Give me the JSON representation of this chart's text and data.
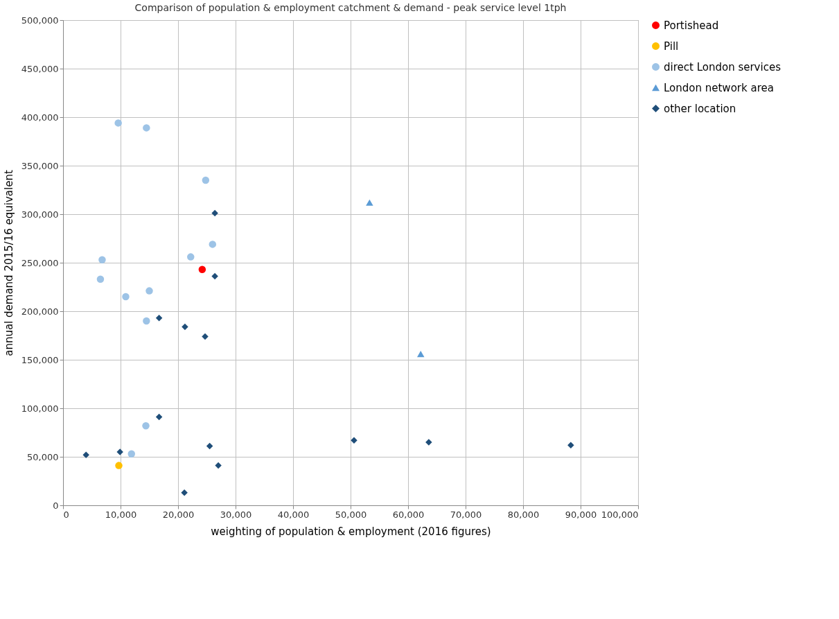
{
  "chart_data": {
    "type": "scatter",
    "title": "Comparison of population & employment catchment & demand - peak service level 1tph",
    "xlabel": "weighting of population & employment (2016 figures)",
    "ylabel": "annual demand 2015/16 equivalent",
    "xlim": [
      0,
      100000
    ],
    "xticks": [
      0,
      {
        "value": 10000,
        "label": "10,000"
      },
      {
        "value": 20000,
        "label": "20,000"
      },
      {
        "value": 30000,
        "label": "30,000"
      },
      {
        "value": 40000,
        "label": "40,000"
      },
      {
        "value": 50000,
        "label": "50,000"
      },
      {
        "value": 60000,
        "label": "60,000"
      },
      {
        "value": 70000,
        "label": "70,000"
      },
      {
        "value": 80000,
        "label": "80,000"
      },
      {
        "value": 90000,
        "label": "90,000"
      },
      {
        "value": 100000,
        "label": "100,000"
      }
    ],
    "ylim": [
      0,
      500000
    ],
    "yticks": [
      0,
      {
        "value": 50000,
        "label": "50,000"
      },
      {
        "value": 100000,
        "label": "100,000"
      },
      {
        "value": 150000,
        "label": "150,000"
      },
      {
        "value": 200000,
        "label": "200,000"
      },
      {
        "value": 250000,
        "label": "250,000"
      },
      {
        "value": 300000,
        "label": "300,000"
      },
      {
        "value": 350000,
        "label": "350,000"
      },
      {
        "value": 400000,
        "label": "400,000"
      },
      {
        "value": 450000,
        "label": "450,000"
      },
      {
        "value": 500000,
        "label": "500,000"
      }
    ],
    "grid": true,
    "legend": "right",
    "series": [
      {
        "name": "Portishead",
        "color": "#ff0000",
        "marker": "circle",
        "x": [
          24200
        ],
        "values": [
          243000
        ]
      },
      {
        "name": "Pill",
        "color": "#ffc000",
        "marker": "circle",
        "x": [
          9700
        ],
        "values": [
          41000
        ]
      },
      {
        "name": "direct London services",
        "color": "#9dc3e6",
        "marker": "circle",
        "x": [
          9600,
          14500,
          24800,
          26000,
          22200,
          6800,
          6500,
          10900,
          15000,
          14500,
          14400,
          11900
        ],
        "values": [
          394000,
          389000,
          335000,
          269000,
          256000,
          253000,
          233000,
          215000,
          221000,
          190000,
          82000,
          53000
        ]
      },
      {
        "name": "London network area",
        "color": "#5b9bd5",
        "marker": "triangle",
        "x": [
          53300,
          62200
        ],
        "values": [
          312000,
          156000
        ]
      },
      {
        "name": "other location",
        "color": "#1f4e79",
        "marker": "diamond",
        "x": [
          26400,
          26400,
          16700,
          21200,
          24700,
          16700,
          9900,
          4000,
          25500,
          27000,
          21100,
          50600,
          63600,
          88300
        ],
        "values": [
          301000,
          236000,
          193000,
          184000,
          174000,
          91000,
          55000,
          52000,
          61000,
          41000,
          13000,
          67000,
          65000,
          62000
        ]
      }
    ]
  }
}
